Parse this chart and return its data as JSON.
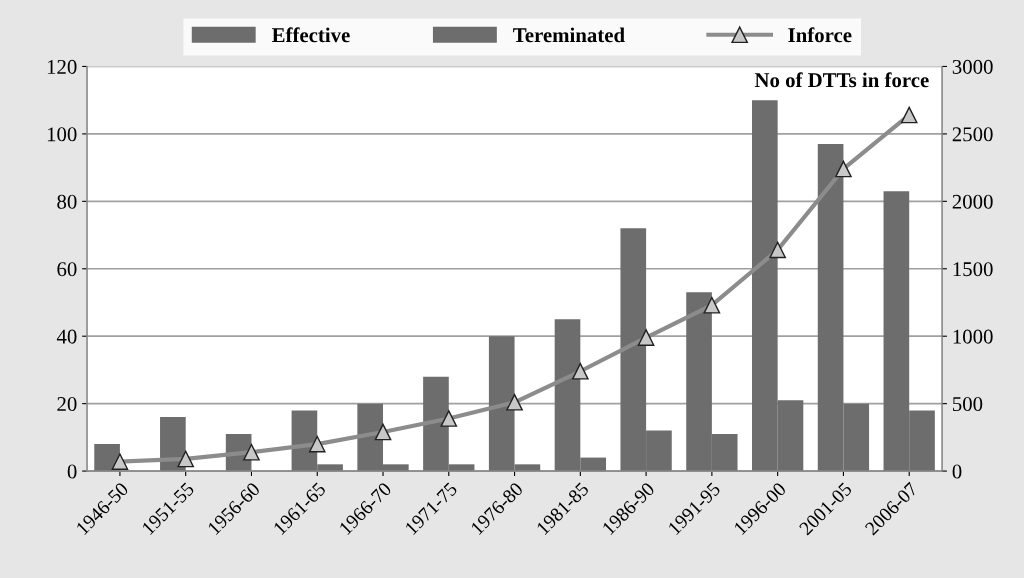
{
  "chart_data": {
    "type": "bar",
    "categories": [
      "1946-50",
      "1951-55",
      "1956-60",
      "1961-65",
      "1966-70",
      "1971-75",
      "1976-80",
      "1981-85",
      "1986-90",
      "1991-95",
      "1996-00",
      "2001-05",
      "2006-07"
    ],
    "series": [
      {
        "name": "Effective",
        "color": "#6d6d6d",
        "values": [
          8,
          16,
          11,
          18,
          20,
          28,
          40,
          45,
          72,
          53,
          110,
          97,
          83
        ]
      },
      {
        "name": "Tereminated",
        "color": "#6d6d6d",
        "values": [
          0,
          0,
          0,
          2,
          2,
          2,
          2,
          4,
          12,
          11,
          21,
          20,
          18
        ]
      },
      {
        "name": "Inforce",
        "type": "line",
        "axis": "y2",
        "color": "#8c8c8c",
        "marker": "triangle",
        "values": [
          70,
          90,
          140,
          200,
          290,
          390,
          510,
          740,
          990,
          1230,
          1640,
          2240,
          2640
        ]
      }
    ],
    "ylim": [
      0,
      120
    ],
    "yticks": [
      0,
      20,
      40,
      60,
      80,
      100,
      120
    ],
    "y2lim": [
      0,
      3000
    ],
    "y2ticks": [
      0,
      500,
      1000,
      1500,
      2000,
      2500,
      3000
    ],
    "grid": "y",
    "legend": "top",
    "annotations": [
      "No of DTTs in force"
    ]
  }
}
